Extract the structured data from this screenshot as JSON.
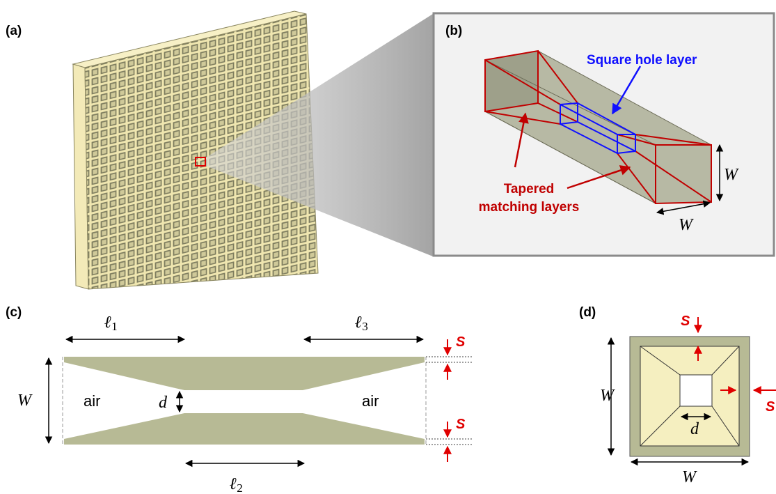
{
  "panel_a": {
    "label": "(a)"
  },
  "panel_b": {
    "label": "(b)",
    "square_hole_label": "Square hole layer",
    "tapered_label": [
      "Tapered",
      "matching layers"
    ],
    "height_label": "W",
    "width_label": "W"
  },
  "panel_c": {
    "label": "(c)",
    "l1": {
      "symbol": "ℓ",
      "subscript": "1"
    },
    "l2": {
      "symbol": "ℓ",
      "subscript": "2"
    },
    "l3": {
      "symbol": "ℓ",
      "subscript": "3"
    },
    "width_label": "W",
    "gap_label": "d",
    "air_labels": [
      "air",
      "air"
    ],
    "wall_labels": [
      "S",
      "S"
    ]
  },
  "panel_d": {
    "label": "(d)",
    "height_label": "W",
    "width_label": "W",
    "hole_label": "d",
    "wall_labels": [
      "S",
      "S"
    ]
  }
}
